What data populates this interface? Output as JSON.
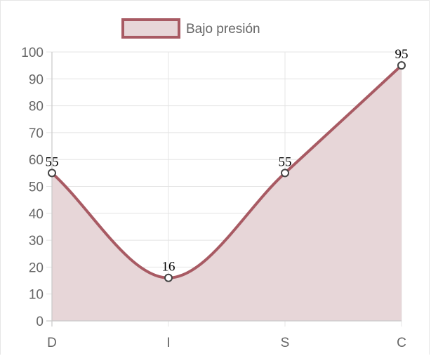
{
  "chart_data": {
    "type": "area",
    "categories": [
      "D",
      "I",
      "S",
      "C"
    ],
    "series": [
      {
        "name": "Bajo presión",
        "values": [
          55,
          16,
          55,
          95
        ]
      }
    ],
    "ylim": [
      0,
      100
    ],
    "yticks": [
      0,
      10,
      20,
      30,
      40,
      50,
      60,
      70,
      80,
      90,
      100
    ],
    "grid": true,
    "legend_position": "top",
    "data_labels": true,
    "colors": {
      "line": "#a85a63",
      "fill": "#e7d6d8",
      "grid": "#e4e4e4",
      "axis": "#c9c9c9"
    }
  }
}
